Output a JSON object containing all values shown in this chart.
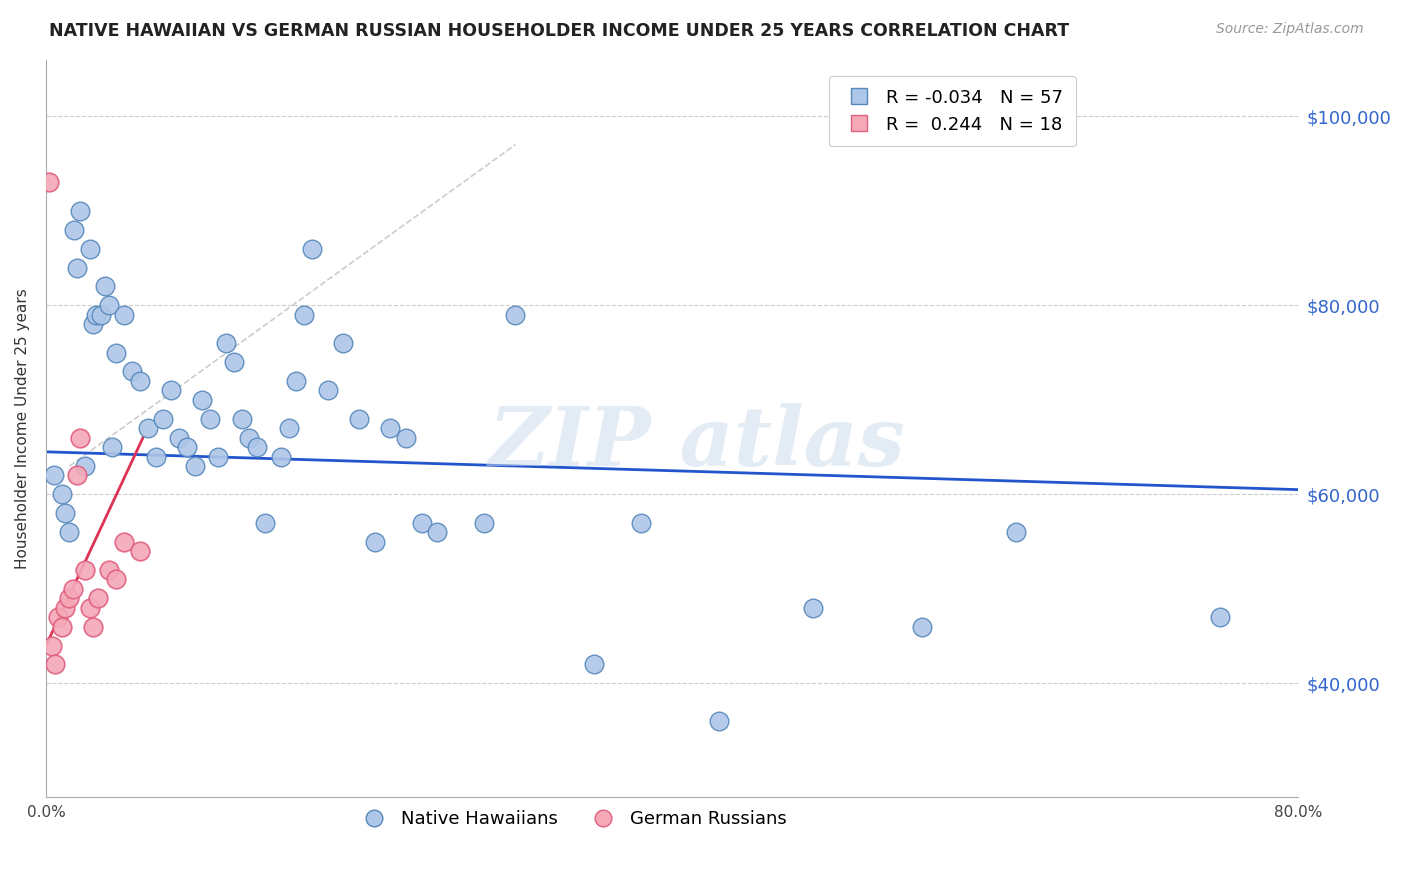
{
  "title": "NATIVE HAWAIIAN VS GERMAN RUSSIAN HOUSEHOLDER INCOME UNDER 25 YEARS CORRELATION CHART",
  "source": "Source: ZipAtlas.com",
  "ylabel": "Householder Income Under 25 years",
  "xlim": [
    0.0,
    0.8
  ],
  "ylim": [
    28000,
    106000
  ],
  "ytick_positions": [
    40000,
    60000,
    80000,
    100000
  ],
  "ytick_labels": [
    "$40,000",
    "$60,000",
    "$80,000",
    "$100,000"
  ],
  "xtick_positions": [
    0.0,
    0.1,
    0.2,
    0.3,
    0.4,
    0.5,
    0.6,
    0.7,
    0.8
  ],
  "xtick_labels": [
    "0.0%",
    "",
    "",
    "",
    "",
    "",
    "",
    "",
    "80.0%"
  ],
  "watermark": "ZIP atlas",
  "background_color": "#ffffff",
  "grid_color": "#cccccc",
  "blue_line_color": "#2255cc",
  "pink_line_color": "#dd3355",
  "ref_line_color": "#cccccc",
  "native_hawaiian_color": "#aec6e8",
  "german_russian_color": "#f4a8b8",
  "native_hawaiian_edge": "#5588bb",
  "german_russian_edge": "#e06080",
  "R_hawaiian": -0.034,
  "N_hawaiian": 57,
  "R_german": 0.244,
  "N_german": 18,
  "native_hawaiians_x": [
    0.005,
    0.01,
    0.012,
    0.015,
    0.018,
    0.02,
    0.022,
    0.025,
    0.028,
    0.03,
    0.032,
    0.035,
    0.038,
    0.04,
    0.042,
    0.045,
    0.05,
    0.055,
    0.06,
    0.065,
    0.07,
    0.075,
    0.08,
    0.085,
    0.09,
    0.095,
    0.1,
    0.105,
    0.11,
    0.115,
    0.12,
    0.125,
    0.13,
    0.135,
    0.14,
    0.15,
    0.155,
    0.16,
    0.165,
    0.17,
    0.18,
    0.19,
    0.2,
    0.21,
    0.22,
    0.23,
    0.24,
    0.25,
    0.28,
    0.3,
    0.35,
    0.38,
    0.43,
    0.49,
    0.56,
    0.62,
    0.75
  ],
  "native_hawaiians_y": [
    62000,
    60000,
    58000,
    56000,
    88000,
    84000,
    90000,
    63000,
    86000,
    78000,
    79000,
    79000,
    82000,
    80000,
    65000,
    75000,
    79000,
    73000,
    72000,
    67000,
    64000,
    68000,
    71000,
    66000,
    65000,
    63000,
    70000,
    68000,
    64000,
    76000,
    74000,
    68000,
    66000,
    65000,
    57000,
    64000,
    67000,
    72000,
    79000,
    86000,
    71000,
    76000,
    68000,
    55000,
    67000,
    66000,
    57000,
    56000,
    57000,
    79000,
    42000,
    57000,
    36000,
    48000,
    46000,
    56000,
    47000
  ],
  "german_russians_x": [
    0.002,
    0.004,
    0.006,
    0.008,
    0.01,
    0.012,
    0.015,
    0.017,
    0.02,
    0.022,
    0.025,
    0.028,
    0.03,
    0.033,
    0.04,
    0.045,
    0.05,
    0.06
  ],
  "german_russians_y": [
    93000,
    44000,
    42000,
    47000,
    46000,
    48000,
    49000,
    50000,
    62000,
    66000,
    52000,
    48000,
    46000,
    49000,
    52000,
    51000,
    55000,
    54000
  ],
  "blue_line_x": [
    0.0,
    0.8
  ],
  "blue_line_y": [
    64500,
    60500
  ],
  "pink_line_x": [
    0.0,
    0.062
  ],
  "pink_line_y": [
    44000,
    66000
  ],
  "ref_line_x": [
    0.015,
    0.3
  ],
  "ref_line_y": [
    63000,
    97000
  ]
}
